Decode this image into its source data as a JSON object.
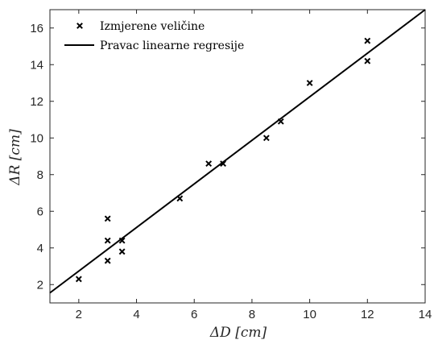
{
  "chart_data": {
    "type": "scatter",
    "xlabel": "ΔD [cm]",
    "ylabel": "ΔR [cm]",
    "xlim": [
      1,
      14
    ],
    "ylim": [
      1,
      17
    ],
    "xticks": [
      2,
      4,
      6,
      8,
      10,
      12,
      14
    ],
    "yticks": [
      2,
      4,
      6,
      8,
      10,
      12,
      14,
      16
    ],
    "grid": false,
    "legend_position": "top-left",
    "series": [
      {
        "name": "Izmjerene veličine",
        "marker": "x",
        "color": "#000000",
        "points": [
          {
            "x": 2,
            "y": 2.3
          },
          {
            "x": 3,
            "y": 3.3
          },
          {
            "x": 3,
            "y": 4.4
          },
          {
            "x": 3,
            "y": 5.6
          },
          {
            "x": 3.5,
            "y": 3.8
          },
          {
            "x": 3.5,
            "y": 4.4
          },
          {
            "x": 5.5,
            "y": 6.7
          },
          {
            "x": 6.5,
            "y": 8.6
          },
          {
            "x": 7,
            "y": 8.6
          },
          {
            "x": 8.5,
            "y": 10.0
          },
          {
            "x": 9,
            "y": 10.9
          },
          {
            "x": 10,
            "y": 13.0
          },
          {
            "x": 12,
            "y": 14.2
          },
          {
            "x": 12,
            "y": 15.3
          }
        ]
      },
      {
        "name": "Pravac linearne regresije",
        "type": "line",
        "color": "#000000",
        "points": [
          {
            "x": 1,
            "y": 1.55
          },
          {
            "x": 14,
            "y": 17
          }
        ]
      }
    ]
  }
}
